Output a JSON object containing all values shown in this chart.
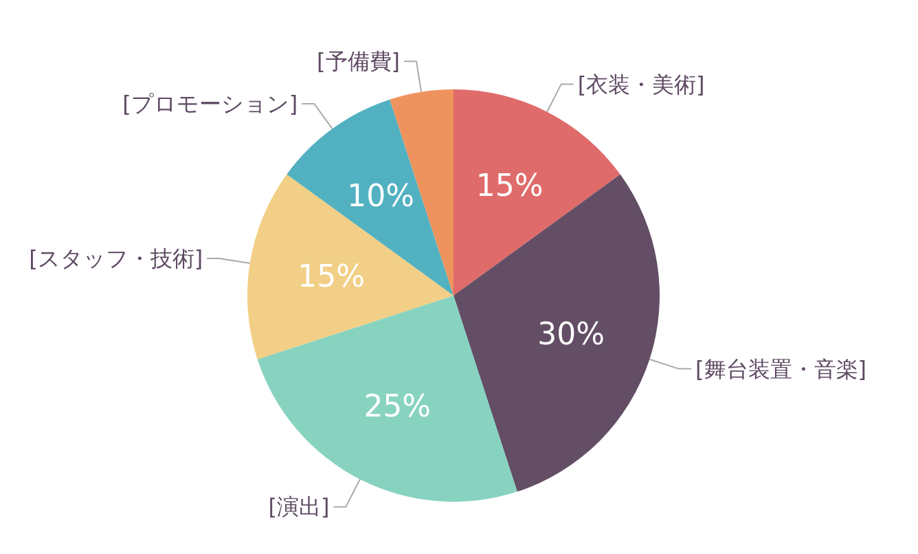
{
  "chart_data": {
    "type": "pie",
    "categories": [
      "[衣装・美術]",
      "[舞台装置・音楽]",
      "[演出]",
      "[スタッフ・技術]",
      "[プロモーション]",
      "[予備費]"
    ],
    "values": [
      15,
      30,
      25,
      15,
      10,
      5
    ],
    "value_labels": [
      "15%",
      "30%",
      "25%",
      "15%",
      "10%",
      null
    ],
    "colors": [
      "#e06b6b",
      "#634e66",
      "#87d3c0",
      "#f2cf86",
      "#52b1c1",
      "#ef935e"
    ]
  }
}
